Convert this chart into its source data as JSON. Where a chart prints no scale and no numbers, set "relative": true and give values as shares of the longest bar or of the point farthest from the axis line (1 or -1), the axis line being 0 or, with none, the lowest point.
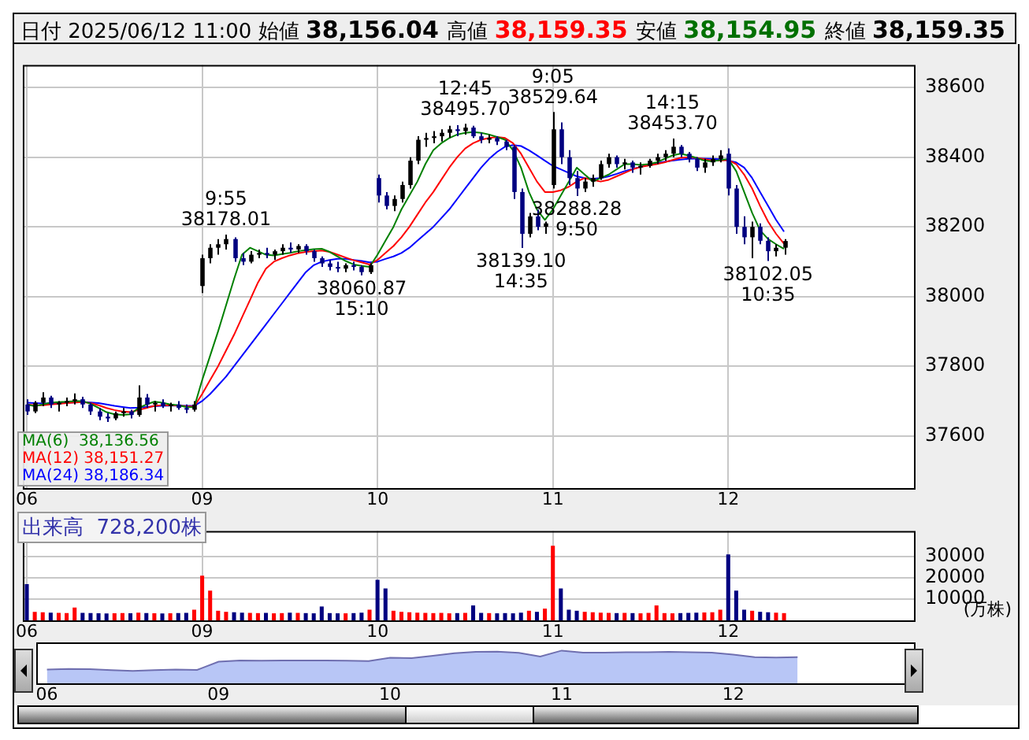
{
  "chart_data": [
    {
      "type": "candlestick",
      "title": "日付 2025/06/12 11:00 始値 38,156.04 高値 38,159.35 安値 38,154.95 終値 38,159.35",
      "categories": [
        "06",
        null,
        null,
        null,
        null,
        null,
        null,
        null,
        null,
        null,
        null,
        null,
        null,
        null,
        null,
        null,
        null,
        null,
        null,
        null,
        null,
        null,
        "09",
        null,
        null,
        null,
        null,
        null,
        null,
        null,
        null,
        null,
        null,
        null,
        null,
        null,
        null,
        null,
        null,
        null,
        null,
        null,
        null,
        null,
        "10",
        null,
        null,
        null,
        null,
        null,
        null,
        null,
        null,
        null,
        null,
        null,
        null,
        null,
        null,
        null,
        null,
        null,
        null,
        null,
        null,
        null,
        "11",
        null,
        null,
        null,
        null,
        null,
        null,
        null,
        null,
        null,
        null,
        null,
        null,
        null,
        null,
        null,
        null,
        null,
        null,
        null,
        null,
        null,
        "12",
        null,
        null,
        null,
        null,
        null,
        null,
        null,
        null,
        null,
        null,
        null,
        null,
        null,
        null,
        null,
        null,
        null,
        null,
        null,
        null,
        null,
        null,
        null
      ],
      "ohlc": [
        [
          37690,
          37705,
          37660,
          37670
        ],
        [
          37670,
          37700,
          37665,
          37695
        ],
        [
          37695,
          37725,
          37685,
          37710
        ],
        [
          37710,
          37715,
          37680,
          37690
        ],
        [
          37690,
          37700,
          37670,
          37695
        ],
        [
          37695,
          37710,
          37685,
          37700
        ],
        [
          37700,
          37722,
          37690,
          37705
        ],
        [
          37705,
          37712,
          37680,
          37690
        ],
        [
          37690,
          37695,
          37660,
          37670
        ],
        [
          37670,
          37680,
          37645,
          37655
        ],
        [
          37655,
          37665,
          37640,
          37650
        ],
        [
          37650,
          37670,
          37645,
          37665
        ],
        [
          37665,
          37680,
          37655,
          37670
        ],
        [
          37670,
          37675,
          37650,
          37660
        ],
        [
          37660,
          37745,
          37655,
          37710
        ],
        [
          37710,
          37720,
          37680,
          37690
        ],
        [
          37690,
          37700,
          37670,
          37695
        ],
        [
          37695,
          37705,
          37680,
          37685
        ],
        [
          37685,
          37695,
          37670,
          37690
        ],
        [
          37690,
          37700,
          37675,
          37680
        ],
        [
          37680,
          37690,
          37665,
          37675
        ],
        [
          37675,
          37700,
          37670,
          37690
        ],
        [
          38030,
          38120,
          38010,
          38110
        ],
        [
          38110,
          38150,
          38095,
          38140
        ],
        [
          38140,
          38165,
          38120,
          38150
        ],
        [
          38150,
          38178.01,
          38135,
          38165
        ],
        [
          38165,
          38170,
          38100,
          38110
        ],
        [
          38110,
          38125,
          38090,
          38100
        ],
        [
          38100,
          38130,
          38095,
          38120
        ],
        [
          38120,
          38135,
          38110,
          38125
        ],
        [
          38125,
          38140,
          38110,
          38120
        ],
        [
          38120,
          38135,
          38105,
          38130
        ],
        [
          38130,
          38150,
          38120,
          38140
        ],
        [
          38140,
          38155,
          38125,
          38135
        ],
        [
          38135,
          38150,
          38125,
          38145
        ],
        [
          38145,
          38150,
          38120,
          38130
        ],
        [
          38130,
          38135,
          38100,
          38110
        ],
        [
          38110,
          38115,
          38085,
          38095
        ],
        [
          38095,
          38105,
          38075,
          38085
        ],
        [
          38085,
          38100,
          38070,
          38080
        ],
        [
          38080,
          38095,
          38070,
          38090
        ],
        [
          38090,
          38100,
          38075,
          38085
        ],
        [
          38085,
          38090,
          38060.87,
          38070
        ],
        [
          38070,
          38095,
          38065,
          38090
        ],
        [
          38340,
          38350,
          38270,
          38290
        ],
        [
          38290,
          38300,
          38250,
          38260
        ],
        [
          38260,
          38290,
          38245,
          38280
        ],
        [
          38280,
          38330,
          38270,
          38320
        ],
        [
          38320,
          38400,
          38310,
          38390
        ],
        [
          38390,
          38460,
          38380,
          38450
        ],
        [
          38450,
          38470,
          38430,
          38455
        ],
        [
          38455,
          38475,
          38440,
          38460
        ],
        [
          38460,
          38480,
          38445,
          38470
        ],
        [
          38470,
          38490,
          38455,
          38480
        ],
        [
          38480,
          38492,
          38460,
          38475
        ],
        [
          38475,
          38495.7,
          38465,
          38485
        ],
        [
          38485,
          38490,
          38455,
          38460
        ],
        [
          38460,
          38470,
          38440,
          38450
        ],
        [
          38450,
          38465,
          38440,
          38455
        ],
        [
          38455,
          38460,
          38435,
          38445
        ],
        [
          38445,
          38450,
          38420,
          38430
        ],
        [
          38430,
          38435,
          38280,
          38300
        ],
        [
          38300,
          38310,
          38139.1,
          38180
        ],
        [
          38180,
          38240,
          38170,
          38230
        ],
        [
          38230,
          38250,
          38190,
          38200
        ],
        [
          38200,
          38215,
          38180,
          38210
        ],
        [
          38320,
          38529.64,
          38310,
          38480
        ],
        [
          38480,
          38500,
          38380,
          38400
        ],
        [
          38400,
          38420,
          38320,
          38340
        ],
        [
          38340,
          38360,
          38288.28,
          38310
        ],
        [
          38310,
          38340,
          38300,
          38330
        ],
        [
          38330,
          38350,
          38315,
          38340
        ],
        [
          38340,
          38390,
          38335,
          38380
        ],
        [
          38380,
          38410,
          38370,
          38400
        ],
        [
          38400,
          38405,
          38370,
          38380
        ],
        [
          38380,
          38395,
          38365,
          38385
        ],
        [
          38385,
          38390,
          38355,
          38370
        ],
        [
          38370,
          38385,
          38350,
          38375
        ],
        [
          38375,
          38395,
          38370,
          38390
        ],
        [
          38390,
          38410,
          38380,
          38400
        ],
        [
          38400,
          38420,
          38390,
          38410
        ],
        [
          38410,
          38453.7,
          38400,
          38430
        ],
        [
          38430,
          38435,
          38400,
          38410
        ],
        [
          38410,
          38415,
          38385,
          38395
        ],
        [
          38395,
          38400,
          38360,
          38370
        ],
        [
          38370,
          38395,
          38355,
          38385
        ],
        [
          38385,
          38405,
          38375,
          38395
        ],
        [
          38395,
          38420,
          38385,
          38405
        ],
        [
          38410,
          38425,
          38290,
          38310
        ],
        [
          38310,
          38320,
          38180,
          38200
        ],
        [
          38200,
          38230,
          38150,
          38170
        ],
        [
          38170,
          38215,
          38110,
          38200
        ],
        [
          38200,
          38210,
          38150,
          38160
        ],
        [
          38160,
          38170,
          38102.05,
          38130
        ],
        [
          38130,
          38150,
          38115,
          38140
        ],
        [
          38140,
          38165,
          38120,
          38159.35
        ],
        null,
        null,
        null,
        null,
        null,
        null,
        null,
        null,
        null,
        null,
        null,
        null,
        null,
        null,
        null,
        null
      ],
      "series": [
        {
          "name": "MA(6)  38,136.56",
          "color": "#008000",
          "type": "line",
          "values": [
            37690,
            37685,
            37690,
            37695,
            37697,
            37698,
            37700,
            37700,
            37692,
            37680,
            37668,
            37662,
            37660,
            37662,
            37680,
            37690,
            37698,
            37695,
            37690,
            37688,
            37683,
            37682,
            37760,
            37830,
            37900,
            37975,
            38050,
            38120,
            38140,
            38130,
            38120,
            38118,
            38122,
            38125,
            38130,
            38133,
            38136,
            38137,
            38128,
            38115,
            38102,
            38092,
            38088,
            38085,
            38120,
            38160,
            38200,
            38250,
            38290,
            38330,
            38380,
            38420,
            38440,
            38455,
            38465,
            38470,
            38472,
            38470,
            38465,
            38458,
            38450,
            38420,
            38370,
            38300,
            38250,
            38220,
            38250,
            38290,
            38330,
            38370,
            38350,
            38330,
            38340,
            38350,
            38365,
            38380,
            38380,
            38378,
            38380,
            38385,
            38395,
            38405,
            38410,
            38405,
            38398,
            38390,
            38388,
            38392,
            38395,
            38360,
            38300,
            38240,
            38190,
            38165,
            38150,
            38136.56,
            null,
            null,
            null,
            null,
            null,
            null,
            null,
            null,
            null,
            null,
            null,
            null,
            null,
            null,
            null,
            null
          ]
        },
        {
          "name": "MA(12) 38,151.27",
          "color": "#ff0000",
          "type": "line",
          "values": [
            37690,
            37688,
            37688,
            37690,
            37692,
            37694,
            37696,
            37697,
            37694,
            37688,
            37680,
            37674,
            37670,
            37668,
            37674,
            37680,
            37686,
            37688,
            37688,
            37687,
            37685,
            37684,
            37720,
            37760,
            37800,
            37845,
            37890,
            37940,
            37990,
            38040,
            38080,
            38100,
            38110,
            38118,
            38124,
            38128,
            38130,
            38132,
            38128,
            38120,
            38112,
            38104,
            38098,
            38092,
            38105,
            38125,
            38145,
            38170,
            38200,
            38235,
            38270,
            38300,
            38335,
            38370,
            38400,
            38425,
            38440,
            38450,
            38455,
            38458,
            38455,
            38440,
            38410,
            38370,
            38330,
            38300,
            38300,
            38305,
            38315,
            38330,
            38340,
            38335,
            38330,
            38335,
            38345,
            38355,
            38365,
            38372,
            38376,
            38380,
            38385,
            38392,
            38398,
            38400,
            38398,
            38394,
            38390,
            38390,
            38392,
            38380,
            38350,
            38310,
            38260,
            38215,
            38180,
            38151.27,
            null,
            null,
            null,
            null,
            null,
            null,
            null,
            null,
            null,
            null,
            null,
            null,
            null,
            null,
            null,
            null
          ]
        },
        {
          "name": "MA(24) 38,186.34",
          "color": "#0000ff",
          "type": "line",
          "values": [
            37695,
            37694,
            37693,
            37693,
            37694,
            37695,
            37696,
            37697,
            37696,
            37694,
            37690,
            37686,
            37683,
            37680,
            37681,
            37683,
            37685,
            37686,
            37687,
            37687,
            37686,
            37686,
            37700,
            37720,
            37745,
            37770,
            37800,
            37830,
            37860,
            37890,
            37920,
            37950,
            37980,
            38010,
            38040,
            38070,
            38090,
            38100,
            38105,
            38108,
            38108,
            38105,
            38102,
            38098,
            38100,
            38108,
            38115,
            38125,
            38140,
            38160,
            38180,
            38200,
            38225,
            38250,
            38280,
            38310,
            38340,
            38370,
            38395,
            38415,
            38430,
            38435,
            38432,
            38420,
            38405,
            38390,
            38375,
            38365,
            38355,
            38345,
            38340,
            38338,
            38340,
            38345,
            38352,
            38360,
            38366,
            38372,
            38378,
            38383,
            38387,
            38390,
            38393,
            38395,
            38396,
            38396,
            38395,
            38394,
            38390,
            38385,
            38370,
            38340,
            38300,
            38260,
            38220,
            38186.34,
            null,
            null,
            null,
            null,
            null,
            null,
            null,
            null,
            null,
            null,
            null,
            null,
            null,
            null,
            null,
            null
          ]
        }
      ],
      "annotations": [
        {
          "text": "9:55\n38178.01",
          "y": 38178.01
        },
        {
          "text": "38060.87\n15:10",
          "y": 38060.87
        },
        {
          "text": "12:45\n38495.70",
          "y": 38495.7
        },
        {
          "text": "38139.10\n14:35",
          "y": 38139.1
        },
        {
          "text": "9:05\n38529.64",
          "y": 38529.64
        },
        {
          "text": "38288.28\n9:50",
          "y": 38288.28
        },
        {
          "text": "14:15\n38453.70",
          "y": 38453.7
        },
        {
          "text": "38102.05\n10:35",
          "y": 38102.05
        }
      ],
      "ylim": [
        37450,
        38665
      ],
      "yticks": [
        37600,
        37800,
        38000,
        38200,
        38400,
        38600
      ],
      "grid": true,
      "legend": "bottom left"
    },
    {
      "type": "bar",
      "title": "出来高  728,200株",
      "ylabel": "(万株)",
      "categories": [
        "06",
        null,
        null,
        null,
        null,
        null,
        null,
        null,
        null,
        null,
        null,
        null,
        null,
        null,
        null,
        null,
        null,
        null,
        null,
        null,
        null,
        null,
        "09",
        null,
        null,
        null,
        null,
        null,
        null,
        null,
        null,
        null,
        null,
        null,
        null,
        null,
        null,
        null,
        null,
        null,
        null,
        null,
        null,
        null,
        "10",
        null,
        null,
        null,
        null,
        null,
        null,
        null,
        null,
        null,
        null,
        null,
        null,
        null,
        null,
        null,
        null,
        null,
        null,
        null,
        null,
        null,
        "11",
        null,
        null,
        null,
        null,
        null,
        null,
        null,
        null,
        null,
        null,
        null,
        null,
        null,
        null,
        null,
        null,
        null,
        null,
        null,
        null,
        null,
        "12",
        null,
        null,
        null,
        null,
        null,
        null,
        null,
        null,
        null,
        null,
        null,
        null,
        null,
        null,
        null,
        null,
        null,
        null,
        null,
        null,
        null,
        null,
        null
      ],
      "values": [
        17000,
        4000,
        3800,
        3600,
        3500,
        3400,
        6000,
        3500,
        3400,
        3300,
        3200,
        3300,
        3400,
        3300,
        3600,
        3400,
        3300,
        3200,
        3300,
        3400,
        3500,
        5000,
        21000,
        14000,
        4500,
        4000,
        3800,
        3600,
        3500,
        3400,
        3500,
        3300,
        3400,
        3600,
        3500,
        3400,
        3300,
        6500,
        3400,
        3300,
        3300,
        3400,
        3600,
        5000,
        19000,
        15000,
        4500,
        4000,
        3800,
        3600,
        3500,
        3400,
        3500,
        3300,
        3400,
        3500,
        7000,
        3500,
        3400,
        3300,
        3400,
        3300,
        3600,
        4500,
        4000,
        5500,
        35000,
        15000,
        5000,
        4500,
        4000,
        3800,
        3600,
        3500,
        3400,
        3500,
        3400,
        3300,
        3500,
        7000,
        3400,
        3300,
        3400,
        3500,
        3600,
        3700,
        3800,
        5000,
        31000,
        14000,
        5000,
        4500,
        4000,
        3800,
        3600,
        3400,
        null,
        null,
        null,
        null,
        null,
        null,
        null,
        null,
        null,
        null,
        null,
        null,
        null,
        null,
        null,
        null
      ],
      "colors": [
        "#000080",
        "#ff0000",
        "#ff0000",
        "#000080",
        "#ff0000",
        "#ff0000",
        "#ff0000",
        "#000080",
        "#000080",
        "#000080",
        "#000080",
        "#ff0000",
        "#ff0000",
        "#000080",
        "#ff0000",
        "#000080",
        "#ff0000",
        "#000080",
        "#ff0000",
        "#000080",
        "#000080",
        "#ff0000",
        "#ff0000",
        "#ff0000",
        "#ff0000",
        "#ff0000",
        "#000080",
        "#000080",
        "#ff0000",
        "#ff0000",
        "#000080",
        "#ff0000",
        "#ff0000",
        "#000080",
        "#ff0000",
        "#000080",
        "#000080",
        "#000080",
        "#000080",
        "#000080",
        "#ff0000",
        "#000080",
        "#000080",
        "#ff0000",
        "#000080",
        "#000080",
        "#ff0000",
        "#ff0000",
        "#ff0000",
        "#ff0000",
        "#ff0000",
        "#ff0000",
        "#ff0000",
        "#ff0000",
        "#000080",
        "#ff0000",
        "#000080",
        "#000080",
        "#ff0000",
        "#000080",
        "#000080",
        "#000080",
        "#000080",
        "#ff0000",
        "#000080",
        "#ff0000",
        "#ff0000",
        "#000080",
        "#000080",
        "#000080",
        "#ff0000",
        "#ff0000",
        "#ff0000",
        "#ff0000",
        "#000080",
        "#ff0000",
        "#000080",
        "#ff0000",
        "#ff0000",
        "#ff0000",
        "#ff0000",
        "#ff0000",
        "#000080",
        "#000080",
        "#000080",
        "#ff0000",
        "#ff0000",
        "#ff0000",
        "#000080",
        "#000080",
        "#000080",
        "#ff0000",
        "#000080",
        "#000080",
        "#ff0000",
        "#ff0000",
        null,
        null,
        null,
        null,
        null,
        null,
        null,
        null,
        null,
        null,
        null,
        null,
        null,
        null,
        null,
        null
      ],
      "ylim": [
        0,
        42000
      ],
      "yticks": [
        10000,
        20000,
        30000
      ],
      "grid": true
    },
    {
      "type": "area",
      "relative": true,
      "color": "#b8c6f6",
      "categories": [
        "06",
        null,
        null,
        null,
        null,
        null,
        null,
        null,
        "09",
        null,
        null,
        null,
        null,
        null,
        null,
        null,
        "10",
        null,
        null,
        null,
        null,
        null,
        null,
        null,
        "11",
        null,
        null,
        null,
        null,
        null,
        null,
        null,
        "12",
        null,
        null,
        null,
        null,
        null,
        null,
        null,
        null
      ],
      "values": [
        0.42,
        0.44,
        0.43,
        0.4,
        0.38,
        0.4,
        0.42,
        0.41,
        0.66,
        0.7,
        0.69,
        0.7,
        0.7,
        0.7,
        0.69,
        0.68,
        0.78,
        0.77,
        0.84,
        0.92,
        0.96,
        0.97,
        0.93,
        0.82,
        1.0,
        0.94,
        0.94,
        0.95,
        0.95,
        0.96,
        0.95,
        0.94,
        0.88,
        0.8,
        0.79,
        0.8,
        null,
        null,
        null,
        null,
        null
      ]
    }
  ]
}
